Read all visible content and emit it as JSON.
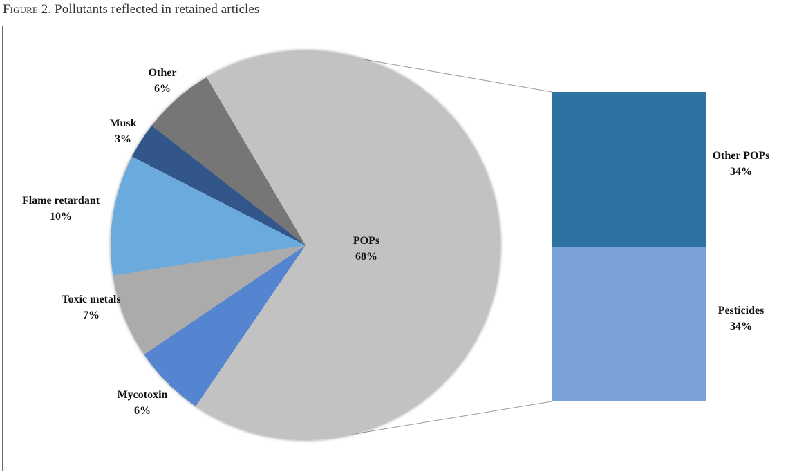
{
  "caption": {
    "prefix": "Figure 2.",
    "text": "Pollutants reflected in retained articles"
  },
  "chart_data": {
    "type": "bar-of-pie",
    "pie": {
      "slices": [
        {
          "name": "POPs",
          "value": 68,
          "label": "68%",
          "color": "#c2c2c2"
        },
        {
          "name": "Mycotoxin",
          "value": 6,
          "label": "6%",
          "color": "#5584d0"
        },
        {
          "name": "Toxic metals",
          "value": 7,
          "label": "7%",
          "color": "#ababab"
        },
        {
          "name": "Flame retardant",
          "value": 10,
          "label": "10%",
          "color": "#6aaadd"
        },
        {
          "name": "Musk",
          "value": 3,
          "label": "3%",
          "color": "#30558a"
        },
        {
          "name": "Other",
          "value": 6,
          "label": "6%",
          "color": "#767676"
        }
      ]
    },
    "bar": {
      "breakdown_of": "POPs",
      "segments": [
        {
          "name": "Other POPs",
          "value": 34,
          "label": "34%",
          "color": "#2e72a3"
        },
        {
          "name": "Pesticides",
          "value": 34,
          "label": "34%",
          "color": "#7aa1da"
        }
      ]
    }
  }
}
